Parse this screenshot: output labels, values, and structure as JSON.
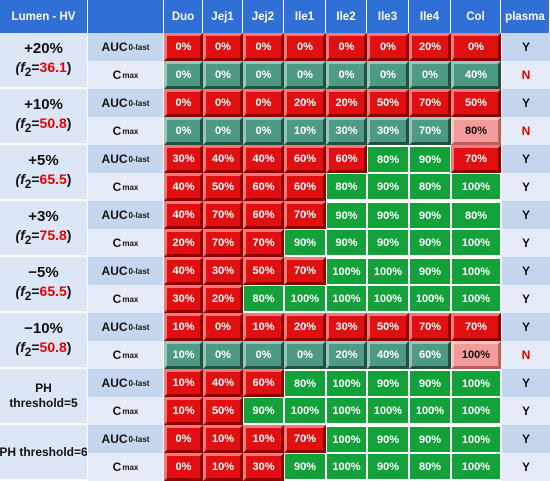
{
  "table": {
    "corner_label": "Lumen - HV",
    "columns": [
      "Duo",
      "Jej1",
      "Jej2",
      "Ile1",
      "Ile2",
      "Ile3",
      "Ile4",
      "Col"
    ],
    "plasma_label": "plasma",
    "metric_labels": {
      "auc": "AUC",
      "auc_sub": "0-last",
      "cmax": "C",
      "cmax_sub": "max"
    },
    "f2_prefix": "(f",
    "f2_sub": "2",
    "f2_eq": "=",
    "f2_suffix": ")",
    "scenarios": [
      {
        "label": "+20%",
        "f2": "36.1",
        "auc": {
          "values": [
            "0%",
            "0%",
            "0%",
            "0%",
            "0%",
            "0%",
            "20%",
            "0%"
          ],
          "styles": [
            "r",
            "r",
            "r",
            "r",
            "r",
            "r",
            "r",
            "r"
          ],
          "plasma": "Y"
        },
        "cmax": {
          "values": [
            "0%",
            "0%",
            "0%",
            "0%",
            "0%",
            "0%",
            "0%",
            "40%"
          ],
          "styles": [
            "t",
            "t",
            "t",
            "t",
            "t",
            "t",
            "t",
            "t"
          ],
          "plasma": "N"
        }
      },
      {
        "label": "+10%",
        "f2": "50.8",
        "auc": {
          "values": [
            "0%",
            "0%",
            "0%",
            "20%",
            "20%",
            "50%",
            "70%",
            "50%"
          ],
          "styles": [
            "r",
            "r",
            "r",
            "r",
            "r",
            "r",
            "r",
            "r"
          ],
          "plasma": "Y"
        },
        "cmax": {
          "values": [
            "0%",
            "0%",
            "0%",
            "10%",
            "30%",
            "30%",
            "70%",
            "80%"
          ],
          "styles": [
            "t",
            "t",
            "t",
            "t",
            "t",
            "t",
            "t",
            "p"
          ],
          "plasma": "N"
        }
      },
      {
        "label": "+5%",
        "f2": "65.5",
        "auc": {
          "values": [
            "30%",
            "40%",
            "40%",
            "60%",
            "60%",
            "80%",
            "90%",
            "70%"
          ],
          "styles": [
            "r",
            "r",
            "r",
            "r",
            "r",
            "g",
            "g",
            "r"
          ],
          "plasma": "Y"
        },
        "cmax": {
          "values": [
            "40%",
            "50%",
            "60%",
            "60%",
            "80%",
            "90%",
            "80%",
            "100%"
          ],
          "styles": [
            "r",
            "r",
            "r",
            "r",
            "g",
            "g",
            "g",
            "g"
          ],
          "plasma": "Y"
        }
      },
      {
        "label": "+3%",
        "f2": "75.8",
        "auc": {
          "values": [
            "40%",
            "70%",
            "60%",
            "70%",
            "90%",
            "90%",
            "90%",
            "80%"
          ],
          "styles": [
            "r",
            "r",
            "r",
            "r",
            "g",
            "g",
            "g",
            "g"
          ],
          "plasma": "Y"
        },
        "cmax": {
          "values": [
            "20%",
            "70%",
            "70%",
            "90%",
            "90%",
            "90%",
            "90%",
            "100%"
          ],
          "styles": [
            "r",
            "r",
            "r",
            "g",
            "g",
            "g",
            "g",
            "g"
          ],
          "plasma": "Y"
        }
      },
      {
        "label": "−5%",
        "f2": "65.5",
        "auc": {
          "values": [
            "40%",
            "30%",
            "50%",
            "70%",
            "100%",
            "100%",
            "90%",
            "100%"
          ],
          "styles": [
            "r",
            "r",
            "r",
            "r",
            "g",
            "g",
            "g",
            "g"
          ],
          "plasma": "Y"
        },
        "cmax": {
          "values": [
            "30%",
            "20%",
            "80%",
            "100%",
            "100%",
            "100%",
            "100%",
            "100%"
          ],
          "styles": [
            "r",
            "r",
            "g",
            "g",
            "g",
            "g",
            "g",
            "g"
          ],
          "plasma": "Y"
        }
      },
      {
        "label": "−10%",
        "f2": "50.8",
        "auc": {
          "values": [
            "10%",
            "0%",
            "10%",
            "20%",
            "30%",
            "50%",
            "70%",
            "70%"
          ],
          "styles": [
            "r",
            "r",
            "r",
            "r",
            "r",
            "r",
            "r",
            "r"
          ],
          "plasma": "Y"
        },
        "cmax": {
          "values": [
            "10%",
            "0%",
            "0%",
            "0%",
            "20%",
            "40%",
            "60%",
            "100%"
          ],
          "styles": [
            "t",
            "t",
            "t",
            "t",
            "t",
            "t",
            "t",
            "p"
          ],
          "plasma": "N"
        }
      },
      {
        "label": "PH",
        "label2": "threshold=5",
        "auc": {
          "values": [
            "10%",
            "40%",
            "60%",
            "80%",
            "100%",
            "90%",
            "90%",
            "100%"
          ],
          "styles": [
            "r",
            "r",
            "r",
            "g",
            "g",
            "g",
            "g",
            "g"
          ],
          "plasma": "Y"
        },
        "cmax": {
          "values": [
            "10%",
            "50%",
            "90%",
            "100%",
            "100%",
            "100%",
            "100%",
            "100%"
          ],
          "styles": [
            "r",
            "r",
            "g",
            "g",
            "g",
            "g",
            "g",
            "g"
          ],
          "plasma": "Y"
        }
      },
      {
        "label": "PH threshold=6",
        "auc": {
          "values": [
            "0%",
            "10%",
            "10%",
            "70%",
            "100%",
            "90%",
            "90%",
            "100%"
          ],
          "styles": [
            "r",
            "r",
            "r",
            "r",
            "g",
            "g",
            "g",
            "g"
          ],
          "plasma": "Y"
        },
        "cmax": {
          "values": [
            "0%",
            "10%",
            "30%",
            "90%",
            "100%",
            "90%",
            "80%",
            "100%"
          ],
          "styles": [
            "r",
            "r",
            "r",
            "g",
            "g",
            "g",
            "g",
            "g"
          ],
          "plasma": "Y"
        }
      }
    ],
    "colors": {
      "red": "#e10f0f",
      "teal": "#4f9a84",
      "pink": "#f59a9a",
      "green": "#13a13a",
      "header_blue": "#2f6fd6",
      "label_bg": "#dce6f4",
      "plasma_no": "#e60000"
    }
  }
}
